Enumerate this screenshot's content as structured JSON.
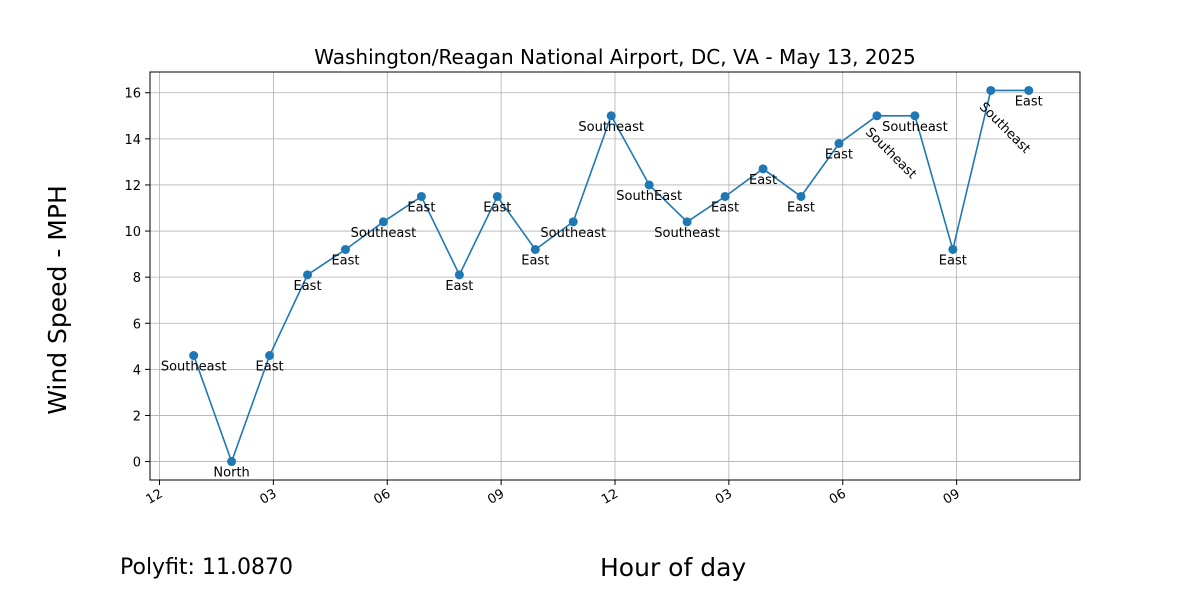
{
  "chart_data": {
    "type": "line",
    "title": "Washington/Reagan National Airport, DC, VA - May 13, 2025",
    "xlabel": "Hour of day",
    "ylabel": "Wind Speed - MPH",
    "xlim_hours": [
      -0.25,
      24.25
    ],
    "ylim": [
      -0.8,
      16.9
    ],
    "y_ticks": [
      0,
      2,
      4,
      6,
      8,
      10,
      12,
      14,
      16
    ],
    "x_ticks": [
      {
        "hour": 0,
        "label": "12"
      },
      {
        "hour": 3,
        "label": "03"
      },
      {
        "hour": 6,
        "label": "06"
      },
      {
        "hour": 9,
        "label": "09"
      },
      {
        "hour": 12,
        "label": "12"
      },
      {
        "hour": 15,
        "label": "03"
      },
      {
        "hour": 18,
        "label": "06"
      },
      {
        "hour": 21,
        "label": "09"
      }
    ],
    "grid": true,
    "series": [
      {
        "color": "#1f77b4",
        "points": [
          {
            "x": 0.9,
            "y": 4.6,
            "label": "Southeast",
            "rotated": false
          },
          {
            "x": 1.9,
            "y": 0.0,
            "label": "North",
            "rotated": false
          },
          {
            "x": 2.9,
            "y": 4.6,
            "label": "East",
            "rotated": false
          },
          {
            "x": 3.9,
            "y": 8.1,
            "label": "East",
            "rotated": false
          },
          {
            "x": 4.9,
            "y": 9.2,
            "label": "East",
            "rotated": false
          },
          {
            "x": 5.9,
            "y": 10.4,
            "label": "Southeast",
            "rotated": false
          },
          {
            "x": 6.9,
            "y": 11.5,
            "label": "East",
            "rotated": false
          },
          {
            "x": 7.9,
            "y": 8.1,
            "label": "East",
            "rotated": false
          },
          {
            "x": 8.9,
            "y": 11.5,
            "label": "East",
            "rotated": false
          },
          {
            "x": 9.9,
            "y": 9.2,
            "label": "East",
            "rotated": false
          },
          {
            "x": 10.9,
            "y": 10.4,
            "label": "Southeast",
            "rotated": false
          },
          {
            "x": 11.9,
            "y": 15.0,
            "label": "Southeast",
            "rotated": false
          },
          {
            "x": 12.9,
            "y": 12.0,
            "label": "SouthEast",
            "rotated": false
          },
          {
            "x": 13.9,
            "y": 10.4,
            "label": "Southeast",
            "rotated": false
          },
          {
            "x": 14.9,
            "y": 11.5,
            "label": "East",
            "rotated": false
          },
          {
            "x": 15.9,
            "y": 12.7,
            "label": "East",
            "rotated": false
          },
          {
            "x": 16.9,
            "y": 11.5,
            "label": "East",
            "rotated": false
          },
          {
            "x": 17.9,
            "y": 13.8,
            "label": "East",
            "rotated": false
          },
          {
            "x": 18.9,
            "y": 15.0,
            "label": "Southeast",
            "rotated": true
          },
          {
            "x": 19.9,
            "y": 15.0,
            "label": "Southeast",
            "rotated": false
          },
          {
            "x": 20.9,
            "y": 9.2,
            "label": "East",
            "rotated": false
          },
          {
            "x": 21.9,
            "y": 16.1,
            "label": "Southeast",
            "rotated": true
          },
          {
            "x": 22.9,
            "y": 16.1,
            "label": "East",
            "rotated": false
          }
        ]
      }
    ]
  },
  "footer": {
    "polyfit_text": "Polyfit:  11.0870"
  }
}
